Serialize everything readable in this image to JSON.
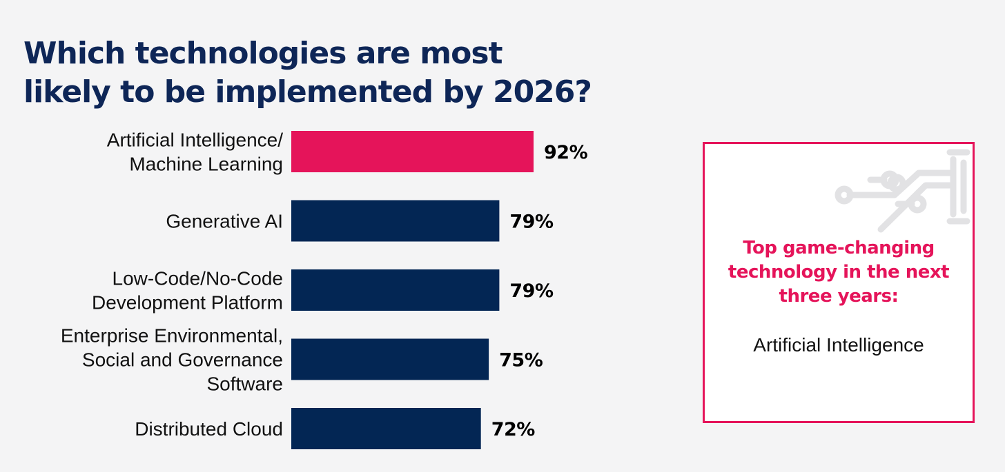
{
  "colors": {
    "background": "#f4f4f5",
    "title": "#0e2657",
    "highlight": "#e5145a",
    "bar_default": "#032654",
    "label": "#111111",
    "circuit": "#e2e2e4"
  },
  "chart_data": {
    "type": "bar",
    "orientation": "horizontal",
    "title_lines": [
      "Which technologies are most",
      "likely to be implemented by 2026?"
    ],
    "categories": [
      [
        "Artificial Intelligence/",
        "Machine Learning"
      ],
      [
        "Generative AI"
      ],
      [
        "Low-Code/No-Code",
        "Development Platform"
      ],
      [
        "Enterprise Environmental,",
        "Social and Governance",
        "Software"
      ],
      [
        "Distributed Cloud"
      ]
    ],
    "values": [
      92,
      79,
      79,
      75,
      72
    ],
    "value_labels": [
      "92%",
      "79%",
      "79%",
      "75%",
      "72%"
    ],
    "unit": "%",
    "highlight_index": 0,
    "grid": false,
    "legend": "none"
  },
  "callout": {
    "heading_lines": [
      "Top game-changing",
      "technology in the next",
      "three years:"
    ],
    "value": "Artificial Intelligence",
    "icon": "circuit-icon"
  }
}
